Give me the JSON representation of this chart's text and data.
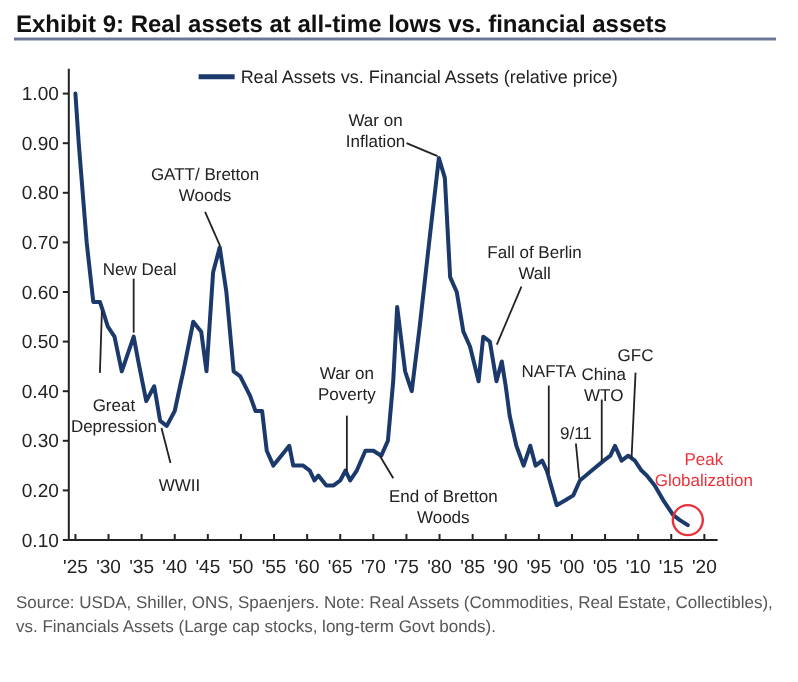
{
  "chart_data": {
    "type": "line",
    "title": "Exhibit 9: Real assets at all-time lows vs. financial assets",
    "x": [
      1925,
      1925.5,
      1926.7,
      1927.7,
      1928.7,
      1929.2,
      1929.9,
      1930.9,
      1932,
      1933.8,
      1934.5,
      1935.7,
      1936.9,
      1937.8,
      1938.8,
      1940,
      1940.8,
      1941.3,
      1942.8,
      1944,
      1944.8,
      1945.8,
      1946.8,
      1947.8,
      1948.9,
      1949.9,
      1951.4,
      1952.2,
      1953.2,
      1953.9,
      1954.9,
      1956.7,
      1957.3,
      1957.9,
      1959.4,
      1960.4,
      1961.1,
      1961.7,
      1962.9,
      1964,
      1965,
      1965.8,
      1966.5,
      1967.5,
      1968.8,
      1970,
      1971.2,
      1972.2,
      1973,
      1973.6,
      1974.8,
      1975.8,
      1977,
      1978.6,
      1979.9,
      1980.8,
      1981.6,
      1982.6,
      1983.6,
      1984.6,
      1985.9,
      1986.6,
      1987.6,
      1988.6,
      1989.4,
      1990,
      1990.6,
      1991.6,
      1992.7,
      1993.7,
      1994.5,
      1995.5,
      1996.2,
      1997.7,
      1999,
      2000.2,
      2001.2,
      2003,
      2004.8,
      2005.8,
      2006.5,
      2007.5,
      2008.5,
      2009.5,
      2010.5,
      2011.3,
      2012.5,
      2013.8,
      2015.3,
      2016.3,
      2017.5
    ],
    "series": [
      {
        "name": "Real Assets vs. Financial Assets (relative price)",
        "color": "#1b3a6b",
        "values": [
          1.0,
          0.9,
          0.7,
          0.58,
          0.58,
          0.56,
          0.53,
          0.51,
          0.44,
          0.51,
          0.46,
          0.38,
          0.41,
          0.34,
          0.33,
          0.36,
          0.41,
          0.44,
          0.54,
          0.52,
          0.44,
          0.64,
          0.69,
          0.6,
          0.44,
          0.43,
          0.39,
          0.36,
          0.36,
          0.28,
          0.25,
          0.28,
          0.29,
          0.25,
          0.25,
          0.24,
          0.22,
          0.23,
          0.21,
          0.21,
          0.22,
          0.24,
          0.22,
          0.24,
          0.28,
          0.28,
          0.27,
          0.3,
          0.42,
          0.57,
          0.44,
          0.4,
          0.53,
          0.72,
          0.87,
          0.83,
          0.63,
          0.6,
          0.52,
          0.49,
          0.42,
          0.51,
          0.5,
          0.42,
          0.46,
          0.41,
          0.35,
          0.29,
          0.25,
          0.29,
          0.25,
          0.26,
          0.24,
          0.17,
          0.18,
          0.19,
          0.22,
          0.24,
          0.26,
          0.27,
          0.29,
          0.26,
          0.27,
          0.26,
          0.24,
          0.23,
          0.21,
          0.18,
          0.15,
          0.14,
          0.13
        ]
      }
    ],
    "xlim": [
      1924,
      2022
    ],
    "xticks": [
      {
        "value": 1925,
        "label": "'25"
      },
      {
        "value": 1930,
        "label": "'30"
      },
      {
        "value": 1935,
        "label": "'35"
      },
      {
        "value": 1940,
        "label": "'40"
      },
      {
        "value": 1945,
        "label": "'45"
      },
      {
        "value": 1950,
        "label": "'50"
      },
      {
        "value": 1955,
        "label": "'55"
      },
      {
        "value": 1960,
        "label": "'60"
      },
      {
        "value": 1965,
        "label": "'65"
      },
      {
        "value": 1970,
        "label": "'70"
      },
      {
        "value": 1975,
        "label": "'75"
      },
      {
        "value": 1980,
        "label": "'80"
      },
      {
        "value": 1985,
        "label": "'85"
      },
      {
        "value": 1990,
        "label": "'90"
      },
      {
        "value": 1995,
        "label": "'95"
      },
      {
        "value": 2000,
        "label": "'00"
      },
      {
        "value": 2005,
        "label": "'05"
      },
      {
        "value": 2010,
        "label": "'10"
      },
      {
        "value": 2015,
        "label": "'15"
      },
      {
        "value": 2020,
        "label": "'20"
      }
    ],
    "ylim": [
      0.1,
      1.05
    ],
    "yticks": [
      {
        "value": 0.1,
        "label": "0.10"
      },
      {
        "value": 0.2,
        "label": "0.20"
      },
      {
        "value": 0.3,
        "label": "0.30"
      },
      {
        "value": 0.4,
        "label": "0.40"
      },
      {
        "value": 0.5,
        "label": "0.50"
      },
      {
        "value": 0.6,
        "label": "0.60"
      },
      {
        "value": 0.7,
        "label": "0.70"
      },
      {
        "value": 0.8,
        "label": "0.80"
      },
      {
        "value": 0.9,
        "label": "0.90"
      },
      {
        "value": 1.0,
        "label": "1.00"
      }
    ],
    "legend": "top",
    "annotations": [
      {
        "text": "Great\nDepression",
        "x": 1929,
        "y": 0.57
      },
      {
        "text": "New Deal",
        "x": 1933.8,
        "y": 0.51
      },
      {
        "text": "WWII",
        "x": 1938,
        "y": 0.33
      },
      {
        "text": "GATT/ Bretton\nWoods",
        "x": 1947,
        "y": 0.685
      },
      {
        "text": "War on\nInflation",
        "x": 1980,
        "y": 0.87
      },
      {
        "text": "Fall of Berlin\nWall",
        "x": 1988.5,
        "y": 0.49
      },
      {
        "text": "War on\nPoverty",
        "x": 1966,
        "y": 0.235
      },
      {
        "text": "End of Bretton\nWoods",
        "x": 1971.5,
        "y": 0.275
      },
      {
        "text": "NAFTA",
        "x": 1996.5,
        "y": 0.23
      },
      {
        "text": "9/11",
        "x": 2001.2,
        "y": 0.22
      },
      {
        "text": "China\nWTO",
        "x": 2004.5,
        "y": 0.255
      },
      {
        "text": "GFC",
        "x": 2009,
        "y": 0.26
      },
      {
        "text": "Peak\nGlobalization",
        "x": 2017.5,
        "y": 0.13
      },
      "Source: USDA, Shiller, ONS, Spaenjers. Note: Real Assets (Commodities, Real Estate, Collectibles), vs. Financials Assets (Large cap stocks, long-term Govt bonds)."
    ]
  }
}
